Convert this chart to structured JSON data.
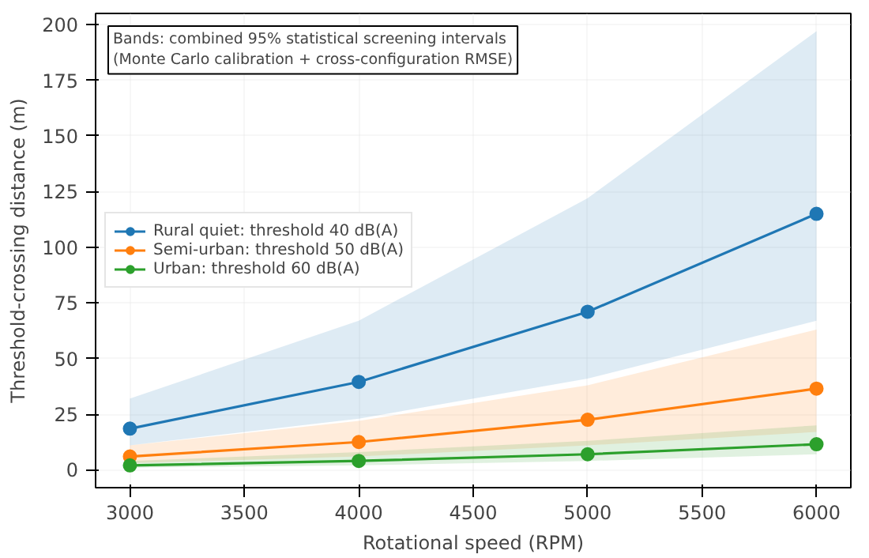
{
  "chart_data": {
    "type": "line",
    "xlabel": "Rotational speed (RPM)",
    "ylabel": "Threshold-crossing distance (m)",
    "annotations": [
      "Bands: combined 95% statistical screening intervals\n(Monte Carlo calibration + cross-configuration RMSE)"
    ],
    "x": [
      3000,
      4000,
      5000,
      6000
    ],
    "series": [
      {
        "name": "Rural quiet: threshold 40 dB(A)",
        "color": "#1f77b4",
        "values": [
          18.5,
          39.5,
          71,
          115
        ],
        "lower": [
          11,
          23,
          41,
          67
        ],
        "upper": [
          32,
          67,
          122,
          197
        ]
      },
      {
        "name": "Semi-urban: threshold 50 dB(A)",
        "color": "#ff7f0e",
        "values": [
          6,
          12.5,
          22.5,
          36.5
        ],
        "lower": [
          3,
          6,
          11,
          17
        ],
        "upper": [
          11,
          22,
          38,
          63
        ]
      },
      {
        "name": "Urban: threshold 60 dB(A)",
        "color": "#2ca02c",
        "values": [
          2,
          4,
          7,
          11.5
        ],
        "lower": [
          1,
          2,
          4,
          7
        ],
        "upper": [
          4,
          8,
          13,
          20
        ]
      }
    ],
    "xlim": [
      2850,
      6150
    ],
    "ylim": [
      -8,
      205
    ],
    "xticks": [
      3000,
      3500,
      4000,
      4500,
      5000,
      5500,
      6000
    ],
    "yticks": [
      0,
      25,
      50,
      75,
      100,
      125,
      150,
      175,
      200
    ],
    "grid": true,
    "legend": "left",
    "marker": "circle",
    "line_style": "solid"
  }
}
